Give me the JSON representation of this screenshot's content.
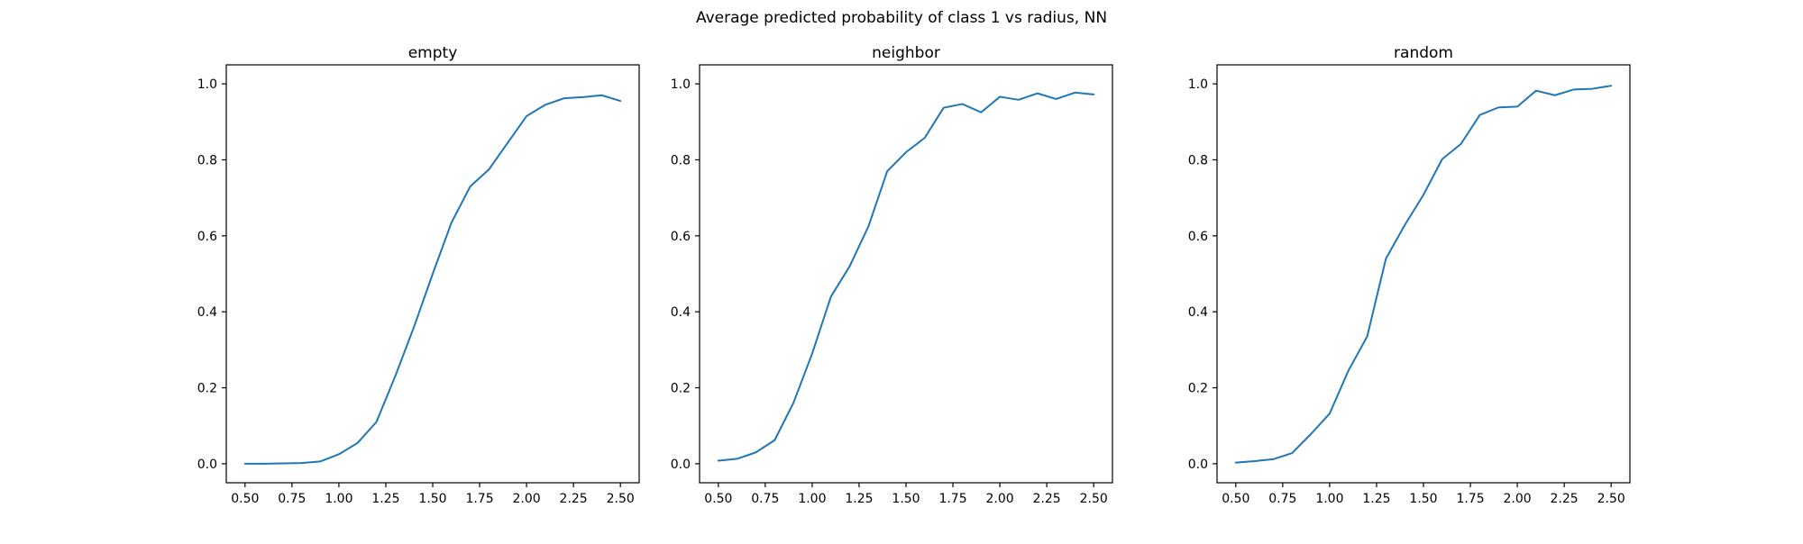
{
  "figure": {
    "suptitle": "Average predicted probability of class 1 vs radius, NN",
    "line_color": "#1f77b4"
  },
  "chart_data": [
    {
      "type": "line",
      "title": "empty",
      "xlabel": "",
      "ylabel": "",
      "xlim": [
        0.4,
        2.6
      ],
      "ylim": [
        -0.05,
        1.05
      ],
      "xticks": [
        "0.50",
        "0.75",
        "1.00",
        "1.25",
        "1.50",
        "1.75",
        "2.00",
        "2.25",
        "2.50"
      ],
      "yticks": [
        "0.0",
        "0.2",
        "0.4",
        "0.6",
        "0.8",
        "1.0"
      ],
      "grid": false,
      "x": [
        0.5,
        0.6,
        0.7,
        0.8,
        0.9,
        1.0,
        1.1,
        1.2,
        1.3,
        1.4,
        1.5,
        1.6,
        1.7,
        1.8,
        1.9,
        2.0,
        2.1,
        2.2,
        2.3,
        2.4,
        2.5
      ],
      "series": [
        {
          "values": [
            0.0,
            0.0,
            0.001,
            0.002,
            0.006,
            0.025,
            0.055,
            0.11,
            0.23,
            0.36,
            0.5,
            0.635,
            0.73,
            0.775,
            0.845,
            0.915,
            0.945,
            0.962,
            0.965,
            0.97,
            0.955
          ]
        }
      ]
    },
    {
      "type": "line",
      "title": "neighbor",
      "xlabel": "",
      "ylabel": "",
      "xlim": [
        0.4,
        2.6
      ],
      "ylim": [
        -0.05,
        1.05
      ],
      "xticks": [
        "0.50",
        "0.75",
        "1.00",
        "1.25",
        "1.50",
        "1.75",
        "2.00",
        "2.25",
        "2.50"
      ],
      "yticks": [
        "0.0",
        "0.2",
        "0.4",
        "0.6",
        "0.8",
        "1.0"
      ],
      "grid": false,
      "x": [
        0.5,
        0.6,
        0.7,
        0.8,
        0.9,
        1.0,
        1.1,
        1.2,
        1.3,
        1.4,
        1.5,
        1.6,
        1.7,
        1.8,
        1.9,
        2.0,
        2.1,
        2.2,
        2.3,
        2.4,
        2.5
      ],
      "series": [
        {
          "values": [
            0.008,
            0.013,
            0.03,
            0.062,
            0.16,
            0.29,
            0.44,
            0.52,
            0.625,
            0.77,
            0.82,
            0.858,
            0.937,
            0.947,
            0.925,
            0.966,
            0.958,
            0.975,
            0.96,
            0.977,
            0.972
          ]
        }
      ]
    },
    {
      "type": "line",
      "title": "random",
      "xlabel": "",
      "ylabel": "",
      "xlim": [
        0.4,
        2.6
      ],
      "ylim": [
        -0.05,
        1.05
      ],
      "xticks": [
        "0.50",
        "0.75",
        "1.00",
        "1.25",
        "1.50",
        "1.75",
        "2.00",
        "2.25",
        "2.50"
      ],
      "yticks": [
        "0.0",
        "0.2",
        "0.4",
        "0.6",
        "0.8",
        "1.0"
      ],
      "grid": false,
      "x": [
        0.5,
        0.6,
        0.7,
        0.8,
        0.9,
        1.0,
        1.1,
        1.2,
        1.3,
        1.4,
        1.5,
        1.6,
        1.7,
        1.8,
        1.9,
        2.0,
        2.1,
        2.2,
        2.3,
        2.4,
        2.5
      ],
      "series": [
        {
          "values": [
            0.003,
            0.007,
            0.012,
            0.028,
            0.078,
            0.132,
            0.245,
            0.335,
            0.54,
            0.628,
            0.708,
            0.802,
            0.842,
            0.918,
            0.938,
            0.94,
            0.982,
            0.97,
            0.985,
            0.987,
            0.995
          ]
        }
      ]
    }
  ]
}
